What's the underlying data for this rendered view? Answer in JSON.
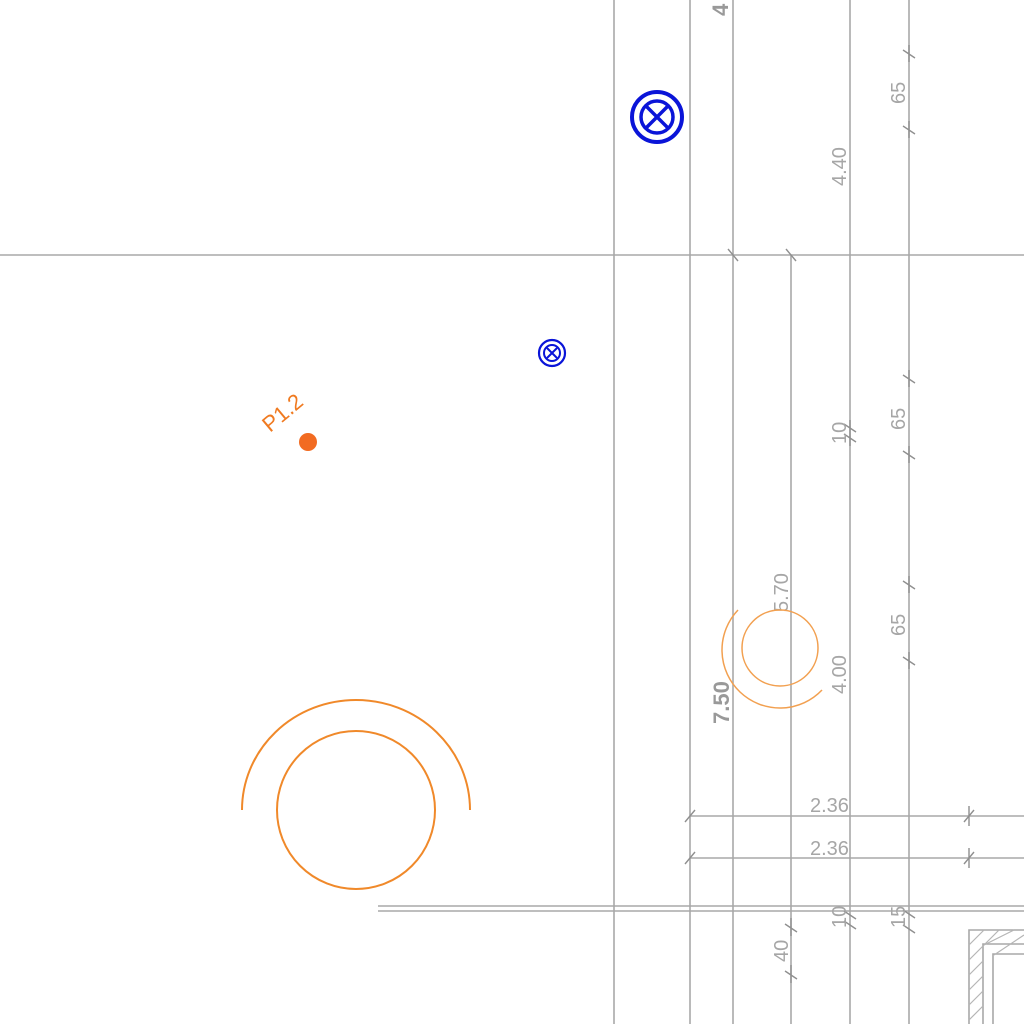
{
  "drawing": {
    "labels": {
      "top_cut": "4",
      "dim_65_a": "65",
      "dim_440": "4.40",
      "dim_65_b": "65",
      "dim_10_a": "10",
      "dim_570": "5.70",
      "dim_65_c": "65",
      "dim_400": "4.00",
      "dim_750": "7.50",
      "dim_236_a": "2.36",
      "dim_236_b": "2.36",
      "dim_10_b": "10",
      "dim_15": "15",
      "dim_40": "40"
    },
    "point_label": "P1.2",
    "colors": {
      "dimension": "#a6a6a6",
      "orange": "#f0892a",
      "blue": "#0a14d8",
      "point": "#f26b21"
    }
  }
}
